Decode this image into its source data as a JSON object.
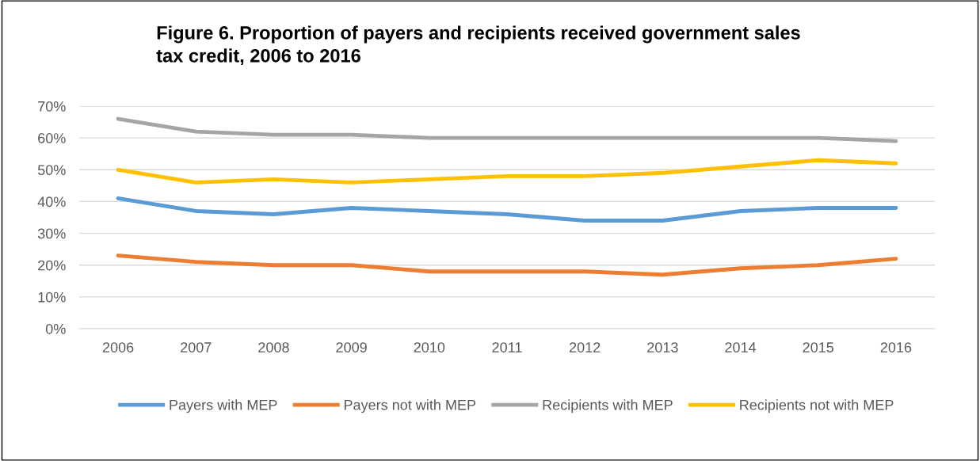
{
  "chart_data": {
    "type": "line",
    "title": "Figure 6. Proportion of payers and recipients received government sales\ntax credit, 2006 to 2016",
    "categories": [
      "2006",
      "2007",
      "2008",
      "2009",
      "2010",
      "2011",
      "2012",
      "2013",
      "2014",
      "2015",
      "2016"
    ],
    "series": [
      {
        "name": "Payers with MEP",
        "color": "#5b9bd5",
        "values": [
          41,
          37,
          36,
          38,
          37,
          36,
          34,
          34,
          37,
          38,
          38
        ]
      },
      {
        "name": "Payers not with MEP",
        "color": "#ed7d31",
        "values": [
          23,
          21,
          20,
          20,
          18,
          18,
          18,
          17,
          19,
          20,
          22
        ]
      },
      {
        "name": "Recipients with MEP",
        "color": "#a5a5a5",
        "values": [
          66,
          62,
          61,
          61,
          60,
          60,
          60,
          60,
          60,
          60,
          59
        ]
      },
      {
        "name": "Recipients not with MEP",
        "color": "#ffc000",
        "values": [
          50,
          46,
          47,
          46,
          47,
          48,
          48,
          49,
          51,
          53,
          52
        ]
      }
    ],
    "ylim": [
      0,
      70
    ],
    "yticks": [
      {
        "value": 0,
        "label": "0%"
      },
      {
        "value": 10,
        "label": "10%"
      },
      {
        "value": 20,
        "label": "20%"
      },
      {
        "value": 30,
        "label": "30%"
      },
      {
        "value": 40,
        "label": "40%"
      },
      {
        "value": 50,
        "label": "50%"
      },
      {
        "value": 60,
        "label": "60%"
      },
      {
        "value": 70,
        "label": "70%"
      }
    ],
    "grid": "y",
    "legend": "bottom",
    "marker": "none",
    "line_style": "solid"
  }
}
